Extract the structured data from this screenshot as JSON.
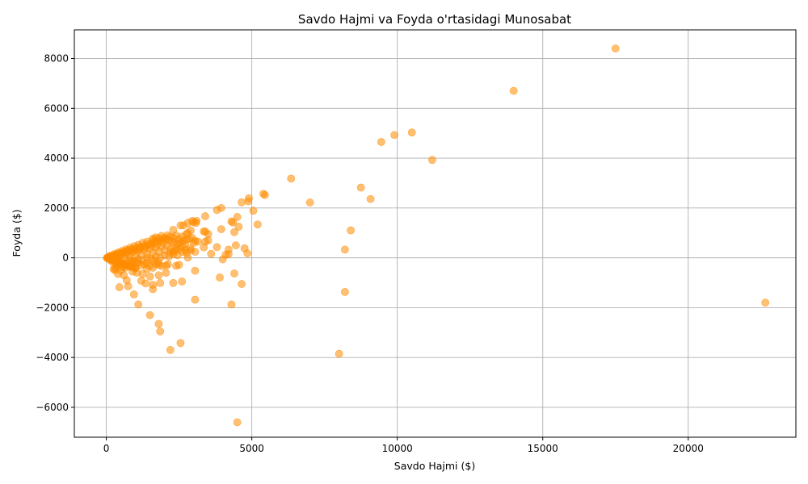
{
  "chart_data": {
    "type": "scatter",
    "title": "Savdo Hajmi va Foyda o'rtasidagi Munosabat",
    "xlabel": "Savdo Hajmi ($)",
    "ylabel": "Foyda ($)",
    "xlim": [
      -1100,
      23700
    ],
    "ylim": [
      -7200,
      9150
    ],
    "xticks": [
      0,
      5000,
      10000,
      15000,
      20000
    ],
    "yticks": [
      -6000,
      -4000,
      -2000,
      0,
      2000,
      4000,
      6000,
      8000
    ],
    "grid": true,
    "marker_color": "#ff8c00",
    "marker_alpha": 0.55,
    "series": [
      {
        "points": [
          [
            17500,
            8400
          ],
          [
            14000,
            6700
          ],
          [
            10500,
            5030
          ],
          [
            9900,
            4930
          ],
          [
            9450,
            4650
          ],
          [
            11200,
            3930
          ],
          [
            6350,
            3180
          ],
          [
            8750,
            2820
          ],
          [
            9080,
            2360
          ],
          [
            7000,
            2220
          ],
          [
            5400,
            2570
          ],
          [
            5450,
            2520
          ],
          [
            4900,
            2390
          ],
          [
            4880,
            2270
          ],
          [
            4650,
            2230
          ],
          [
            5050,
            1890
          ],
          [
            3950,
            2000
          ],
          [
            3800,
            1920
          ],
          [
            3400,
            1670
          ],
          [
            4500,
            1640
          ],
          [
            4300,
            1460
          ],
          [
            4350,
            1420
          ],
          [
            3100,
            1480
          ],
          [
            3000,
            1430
          ],
          [
            2950,
            1480
          ],
          [
            2800,
            1400
          ],
          [
            2650,
            1300
          ],
          [
            2550,
            1300
          ],
          [
            4550,
            1250
          ],
          [
            5200,
            1340
          ],
          [
            8400,
            1100
          ],
          [
            3950,
            1150
          ],
          [
            4400,
            1030
          ],
          [
            3350,
            1060
          ],
          [
            3400,
            1050
          ],
          [
            2800,
            1000
          ],
          [
            3500,
            950
          ],
          [
            2300,
            1120
          ],
          [
            2100,
            900
          ],
          [
            1900,
            880
          ],
          [
            1700,
            820
          ],
          [
            1600,
            770
          ],
          [
            3500,
            700
          ],
          [
            3400,
            650
          ],
          [
            3050,
            680
          ],
          [
            4450,
            500
          ],
          [
            4750,
            380
          ],
          [
            3800,
            430
          ],
          [
            3350,
            420
          ],
          [
            4200,
            330
          ],
          [
            8200,
            330
          ],
          [
            4850,
            180
          ],
          [
            3600,
            160
          ],
          [
            3050,
            240
          ],
          [
            4200,
            150
          ],
          [
            4100,
            120
          ],
          [
            2900,
            300
          ],
          [
            2500,
            350
          ],
          [
            2200,
            200
          ],
          [
            2800,
            10
          ],
          [
            4000,
            -60
          ],
          [
            3050,
            -520
          ],
          [
            2400,
            -320
          ],
          [
            2500,
            -280
          ],
          [
            1900,
            -330
          ],
          [
            2050,
            -310
          ],
          [
            1800,
            -280
          ],
          [
            4400,
            -630
          ],
          [
            3900,
            -790
          ],
          [
            4650,
            -1050
          ],
          [
            8200,
            -1370
          ],
          [
            3050,
            -1680
          ],
          [
            2600,
            -950
          ],
          [
            2300,
            -1010
          ],
          [
            1850,
            -1010
          ],
          [
            1600,
            -1080
          ],
          [
            1600,
            -1260
          ],
          [
            1350,
            -1030
          ],
          [
            1200,
            -920
          ],
          [
            950,
            -1470
          ],
          [
            750,
            -1140
          ],
          [
            450,
            -1180
          ],
          [
            1100,
            -1870
          ],
          [
            4300,
            -1870
          ],
          [
            1500,
            -2300
          ],
          [
            1800,
            -2650
          ],
          [
            1850,
            -2950
          ],
          [
            2550,
            -3420
          ],
          [
            2200,
            -3700
          ],
          [
            8000,
            -3850
          ],
          [
            4500,
            -6600
          ],
          [
            22650,
            -1800
          ],
          [
            2050,
            -600
          ],
          [
            1800,
            -700
          ],
          [
            1500,
            -750
          ],
          [
            1250,
            -650
          ],
          [
            1050,
            -600
          ],
          [
            900,
            -550
          ],
          [
            700,
            -900
          ],
          [
            600,
            -700
          ],
          [
            400,
            -650
          ],
          [
            300,
            -500
          ],
          [
            250,
            -450
          ],
          [
            300,
            -400
          ],
          [
            500,
            -500
          ],
          [
            650,
            -400
          ],
          [
            800,
            -350
          ],
          [
            1000,
            -400
          ],
          [
            1200,
            -300
          ],
          [
            1400,
            -450
          ],
          [
            1600,
            -400
          ],
          [
            1700,
            -250
          ],
          [
            1400,
            -200
          ],
          [
            1100,
            -200
          ],
          [
            900,
            -250
          ],
          [
            700,
            -200
          ],
          [
            500,
            -250
          ],
          [
            350,
            -200
          ],
          [
            200,
            -150
          ],
          [
            150,
            -100
          ],
          [
            100,
            -50
          ],
          [
            50,
            0
          ],
          [
            80,
            30
          ],
          [
            150,
            60
          ],
          [
            250,
            100
          ],
          [
            350,
            140
          ],
          [
            450,
            180
          ],
          [
            550,
            220
          ],
          [
            650,
            260
          ],
          [
            750,
            300
          ],
          [
            850,
            330
          ],
          [
            950,
            360
          ],
          [
            1050,
            390
          ],
          [
            1150,
            420
          ],
          [
            1250,
            450
          ],
          [
            1350,
            500
          ],
          [
            1450,
            540
          ],
          [
            1550,
            580
          ],
          [
            1650,
            620
          ],
          [
            1750,
            660
          ],
          [
            1850,
            700
          ],
          [
            1950,
            740
          ],
          [
            2050,
            760
          ],
          [
            2150,
            700
          ],
          [
            2250,
            650
          ],
          [
            2350,
            600
          ],
          [
            2450,
            560
          ],
          [
            2550,
            620
          ],
          [
            2650,
            680
          ],
          [
            2750,
            720
          ],
          [
            2850,
            760
          ],
          [
            2950,
            800
          ],
          [
            2100,
            500
          ],
          [
            1900,
            450
          ],
          [
            1700,
            420
          ],
          [
            1500,
            380
          ],
          [
            1300,
            330
          ],
          [
            1100,
            280
          ],
          [
            900,
            230
          ],
          [
            700,
            180
          ],
          [
            500,
            130
          ],
          [
            300,
            80
          ],
          [
            200,
            50
          ],
          [
            400,
            0
          ],
          [
            600,
            20
          ],
          [
            800,
            40
          ],
          [
            1000,
            80
          ],
          [
            1200,
            120
          ],
          [
            1400,
            160
          ],
          [
            1600,
            200
          ],
          [
            1800,
            250
          ],
          [
            2000,
            300
          ],
          [
            2200,
            350
          ],
          [
            2400,
            400
          ],
          [
            2600,
            450
          ],
          [
            2300,
            150
          ],
          [
            2000,
            100
          ],
          [
            1700,
            50
          ],
          [
            1400,
            0
          ],
          [
            1100,
            -50
          ],
          [
            800,
            -100
          ],
          [
            500,
            -120
          ],
          [
            650,
            -300
          ],
          [
            950,
            -150
          ],
          [
            1250,
            -100
          ],
          [
            1550,
            -50
          ],
          [
            1850,
            0
          ],
          [
            2150,
            50
          ],
          [
            2450,
            100
          ],
          [
            2750,
            200
          ],
          [
            3000,
            600
          ],
          [
            3150,
            650
          ],
          [
            2700,
            550
          ],
          [
            2500,
            750
          ],
          [
            2300,
            800
          ],
          [
            1950,
            600
          ],
          [
            1750,
            550
          ],
          [
            1550,
            480
          ],
          [
            1350,
            420
          ],
          [
            1150,
            360
          ],
          [
            950,
            300
          ],
          [
            750,
            240
          ],
          [
            550,
            170
          ],
          [
            350,
            110
          ],
          [
            180,
            40
          ],
          [
            120,
            20
          ],
          [
            60,
            10
          ],
          [
            30,
            5
          ],
          [
            20,
            -10
          ],
          [
            90,
            -30
          ],
          [
            160,
            -60
          ],
          [
            230,
            -90
          ],
          [
            300,
            -120
          ],
          [
            370,
            -150
          ],
          [
            440,
            -180
          ],
          [
            510,
            -210
          ],
          [
            580,
            -240
          ],
          [
            650,
            -270
          ],
          [
            720,
            -300
          ],
          [
            790,
            -330
          ],
          [
            860,
            -360
          ],
          [
            930,
            -390
          ],
          [
            1000,
            -420
          ],
          [
            420,
            -320
          ],
          [
            560,
            -380
          ],
          [
            340,
            -280
          ],
          [
            880,
            -120
          ],
          [
            1060,
            -180
          ],
          [
            1320,
            -260
          ],
          [
            1480,
            -320
          ],
          [
            1620,
            -120
          ],
          [
            1780,
            -180
          ],
          [
            2120,
            -260
          ],
          [
            2280,
            250
          ],
          [
            2380,
            300
          ],
          [
            2620,
            240
          ],
          [
            2720,
            320
          ],
          [
            2880,
            380
          ],
          [
            3080,
            1400
          ],
          [
            2900,
            1100
          ],
          [
            2750,
            950
          ],
          [
            2600,
            850
          ],
          [
            2400,
            900
          ],
          [
            2200,
            850
          ],
          [
            2000,
            800
          ],
          [
            1800,
            780
          ],
          [
            1600,
            700
          ],
          [
            1400,
            650
          ],
          [
            1250,
            600
          ],
          [
            1100,
            520
          ],
          [
            960,
            470
          ],
          [
            820,
            400
          ],
          [
            680,
            340
          ],
          [
            540,
            280
          ],
          [
            400,
            210
          ],
          [
            270,
            150
          ],
          [
            130,
            80
          ]
        ]
      }
    ]
  }
}
